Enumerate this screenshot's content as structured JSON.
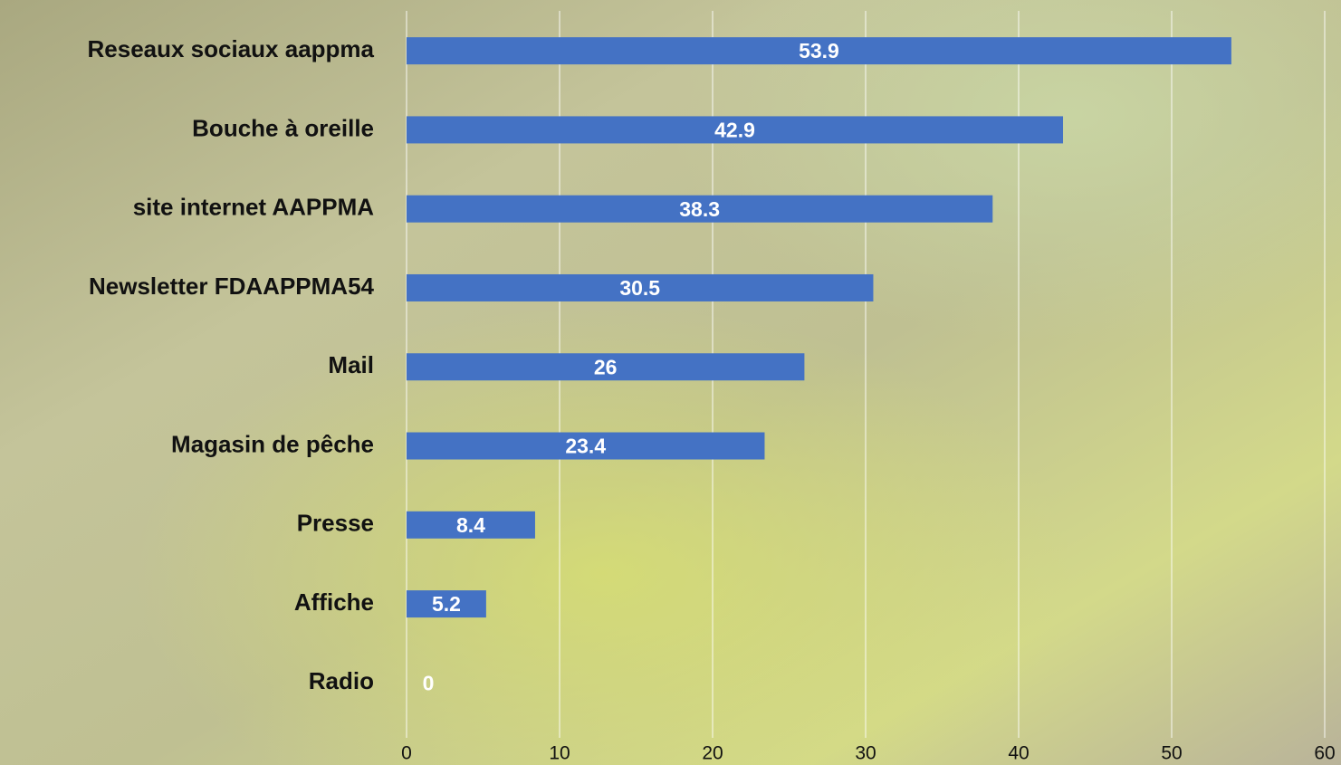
{
  "chart_data": {
    "type": "bar",
    "orientation": "horizontal",
    "categories": [
      "Reseaux sociaux aappma",
      "Bouche à oreille",
      "site internet AAPPMA",
      "Newsletter FDAAPPMA54",
      "Mail",
      "Magasin de pêche",
      "Presse",
      "Affiche",
      "Radio"
    ],
    "values": [
      53.9,
      42.9,
      38.3,
      30.5,
      26,
      23.4,
      8.4,
      5.2,
      0
    ],
    "color": "#4472c4",
    "xlim": [
      0,
      60
    ],
    "xticks": [
      0,
      10,
      20,
      30,
      40,
      50,
      60
    ],
    "grid": true
  }
}
